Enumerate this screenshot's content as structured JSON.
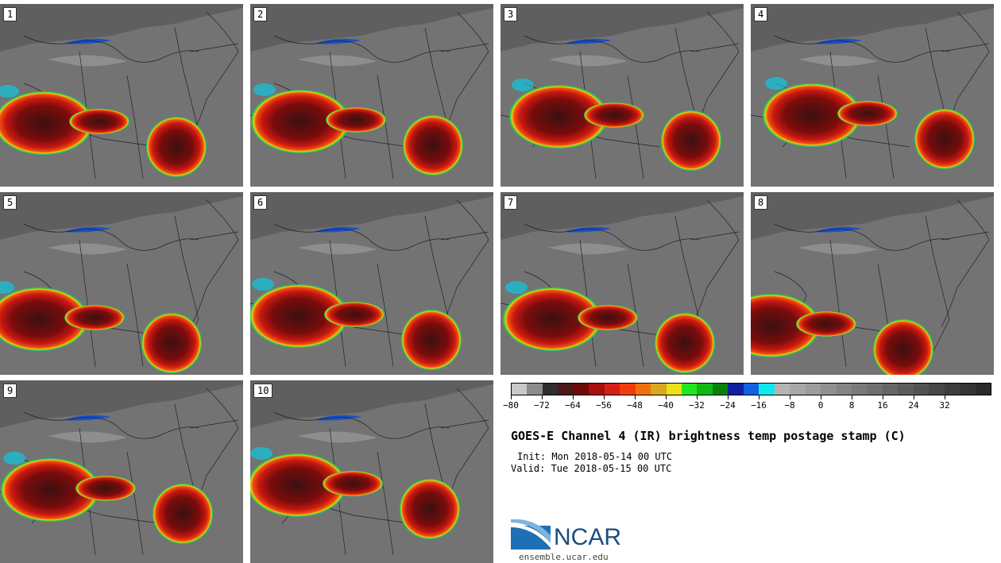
{
  "panels": [
    {
      "label": "1"
    },
    {
      "label": "2"
    },
    {
      "label": "3"
    },
    {
      "label": "4"
    },
    {
      "label": "5"
    },
    {
      "label": "6"
    },
    {
      "label": "7"
    },
    {
      "label": "8"
    },
    {
      "label": "9"
    },
    {
      "label": "10"
    }
  ],
  "colorbar": {
    "colors": [
      "#c8c8c8",
      "#8c8c8c",
      "#2e2e2e",
      "#4a1a1a",
      "#6e0a0a",
      "#a81010",
      "#d4201a",
      "#f23c0c",
      "#f07010",
      "#d8a820",
      "#ece018",
      "#20e620",
      "#10b810",
      "#0a800a",
      "#1020a0",
      "#1060e0",
      "#10e8f0",
      "#b4b4b4",
      "#a8a8a8",
      "#9c9c9c",
      "#909090",
      "#848484",
      "#7a7a7a",
      "#707070",
      "#666666",
      "#5c5c5c",
      "#525252",
      "#484848",
      "#3e3e3e",
      "#343434",
      "#2a2a2a"
    ],
    "tick_labels": [
      "−80",
      "−72",
      "−64",
      "−56",
      "−48",
      "−40",
      "−32",
      "−24",
      "−16",
      "−8",
      "0",
      "8",
      "16",
      "24",
      "32"
    ]
  },
  "title": "GOES-E Channel 4 (IR) brightness temp postage stamp (C)",
  "init": "Init: Mon 2018-05-14 00 UTC",
  "valid": "Valid: Tue 2018-05-15 00 UTC",
  "logo": {
    "text": "NCAR",
    "url": "ensemble.ucar.edu"
  }
}
